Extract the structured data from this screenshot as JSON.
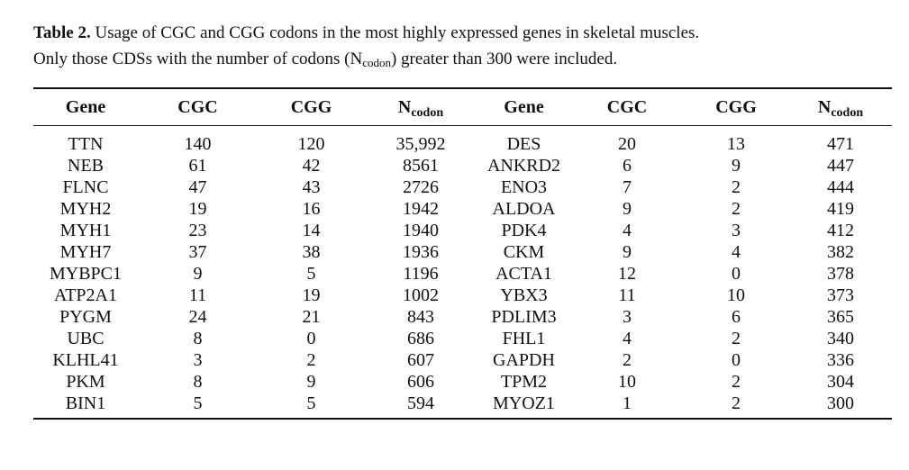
{
  "caption": {
    "label": "Table 2.",
    "line1_rest": " Usage of CGC and CGG codons in the most highly expressed genes in skeletal muscles.",
    "line2_pre": "Only those CDSs with the number of codons (N",
    "line2_sub": "codon",
    "line2_post": ") greater than 300 were included."
  },
  "table": {
    "headers": {
      "gene": "Gene",
      "cgc": "CGC",
      "cgg": "CGG",
      "n_main": "N",
      "n_sub": "codon"
    },
    "rows": [
      [
        "TTN",
        "140",
        "120",
        "35,992",
        "DES",
        "20",
        "13",
        "471"
      ],
      [
        "NEB",
        "61",
        "42",
        "8561",
        "ANKRD2",
        "6",
        "9",
        "447"
      ],
      [
        "FLNC",
        "47",
        "43",
        "2726",
        "ENO3",
        "7",
        "2",
        "444"
      ],
      [
        "MYH2",
        "19",
        "16",
        "1942",
        "ALDOA",
        "9",
        "2",
        "419"
      ],
      [
        "MYH1",
        "23",
        "14",
        "1940",
        "PDK4",
        "4",
        "3",
        "412"
      ],
      [
        "MYH7",
        "37",
        "38",
        "1936",
        "CKM",
        "9",
        "4",
        "382"
      ],
      [
        "MYBPC1",
        "9",
        "5",
        "1196",
        "ACTA1",
        "12",
        "0",
        "378"
      ],
      [
        "ATP2A1",
        "11",
        "19",
        "1002",
        "YBX3",
        "11",
        "10",
        "373"
      ],
      [
        "PYGM",
        "24",
        "21",
        "843",
        "PDLIM3",
        "3",
        "6",
        "365"
      ],
      [
        "UBC",
        "8",
        "0",
        "686",
        "FHL1",
        "4",
        "2",
        "340"
      ],
      [
        "KLHL41",
        "3",
        "2",
        "607",
        "GAPDH",
        "2",
        "0",
        "336"
      ],
      [
        "PKM",
        "8",
        "9",
        "606",
        "TPM2",
        "10",
        "2",
        "304"
      ],
      [
        "BIN1",
        "5",
        "5",
        "594",
        "MYOZ1",
        "1",
        "2",
        "300"
      ]
    ]
  }
}
